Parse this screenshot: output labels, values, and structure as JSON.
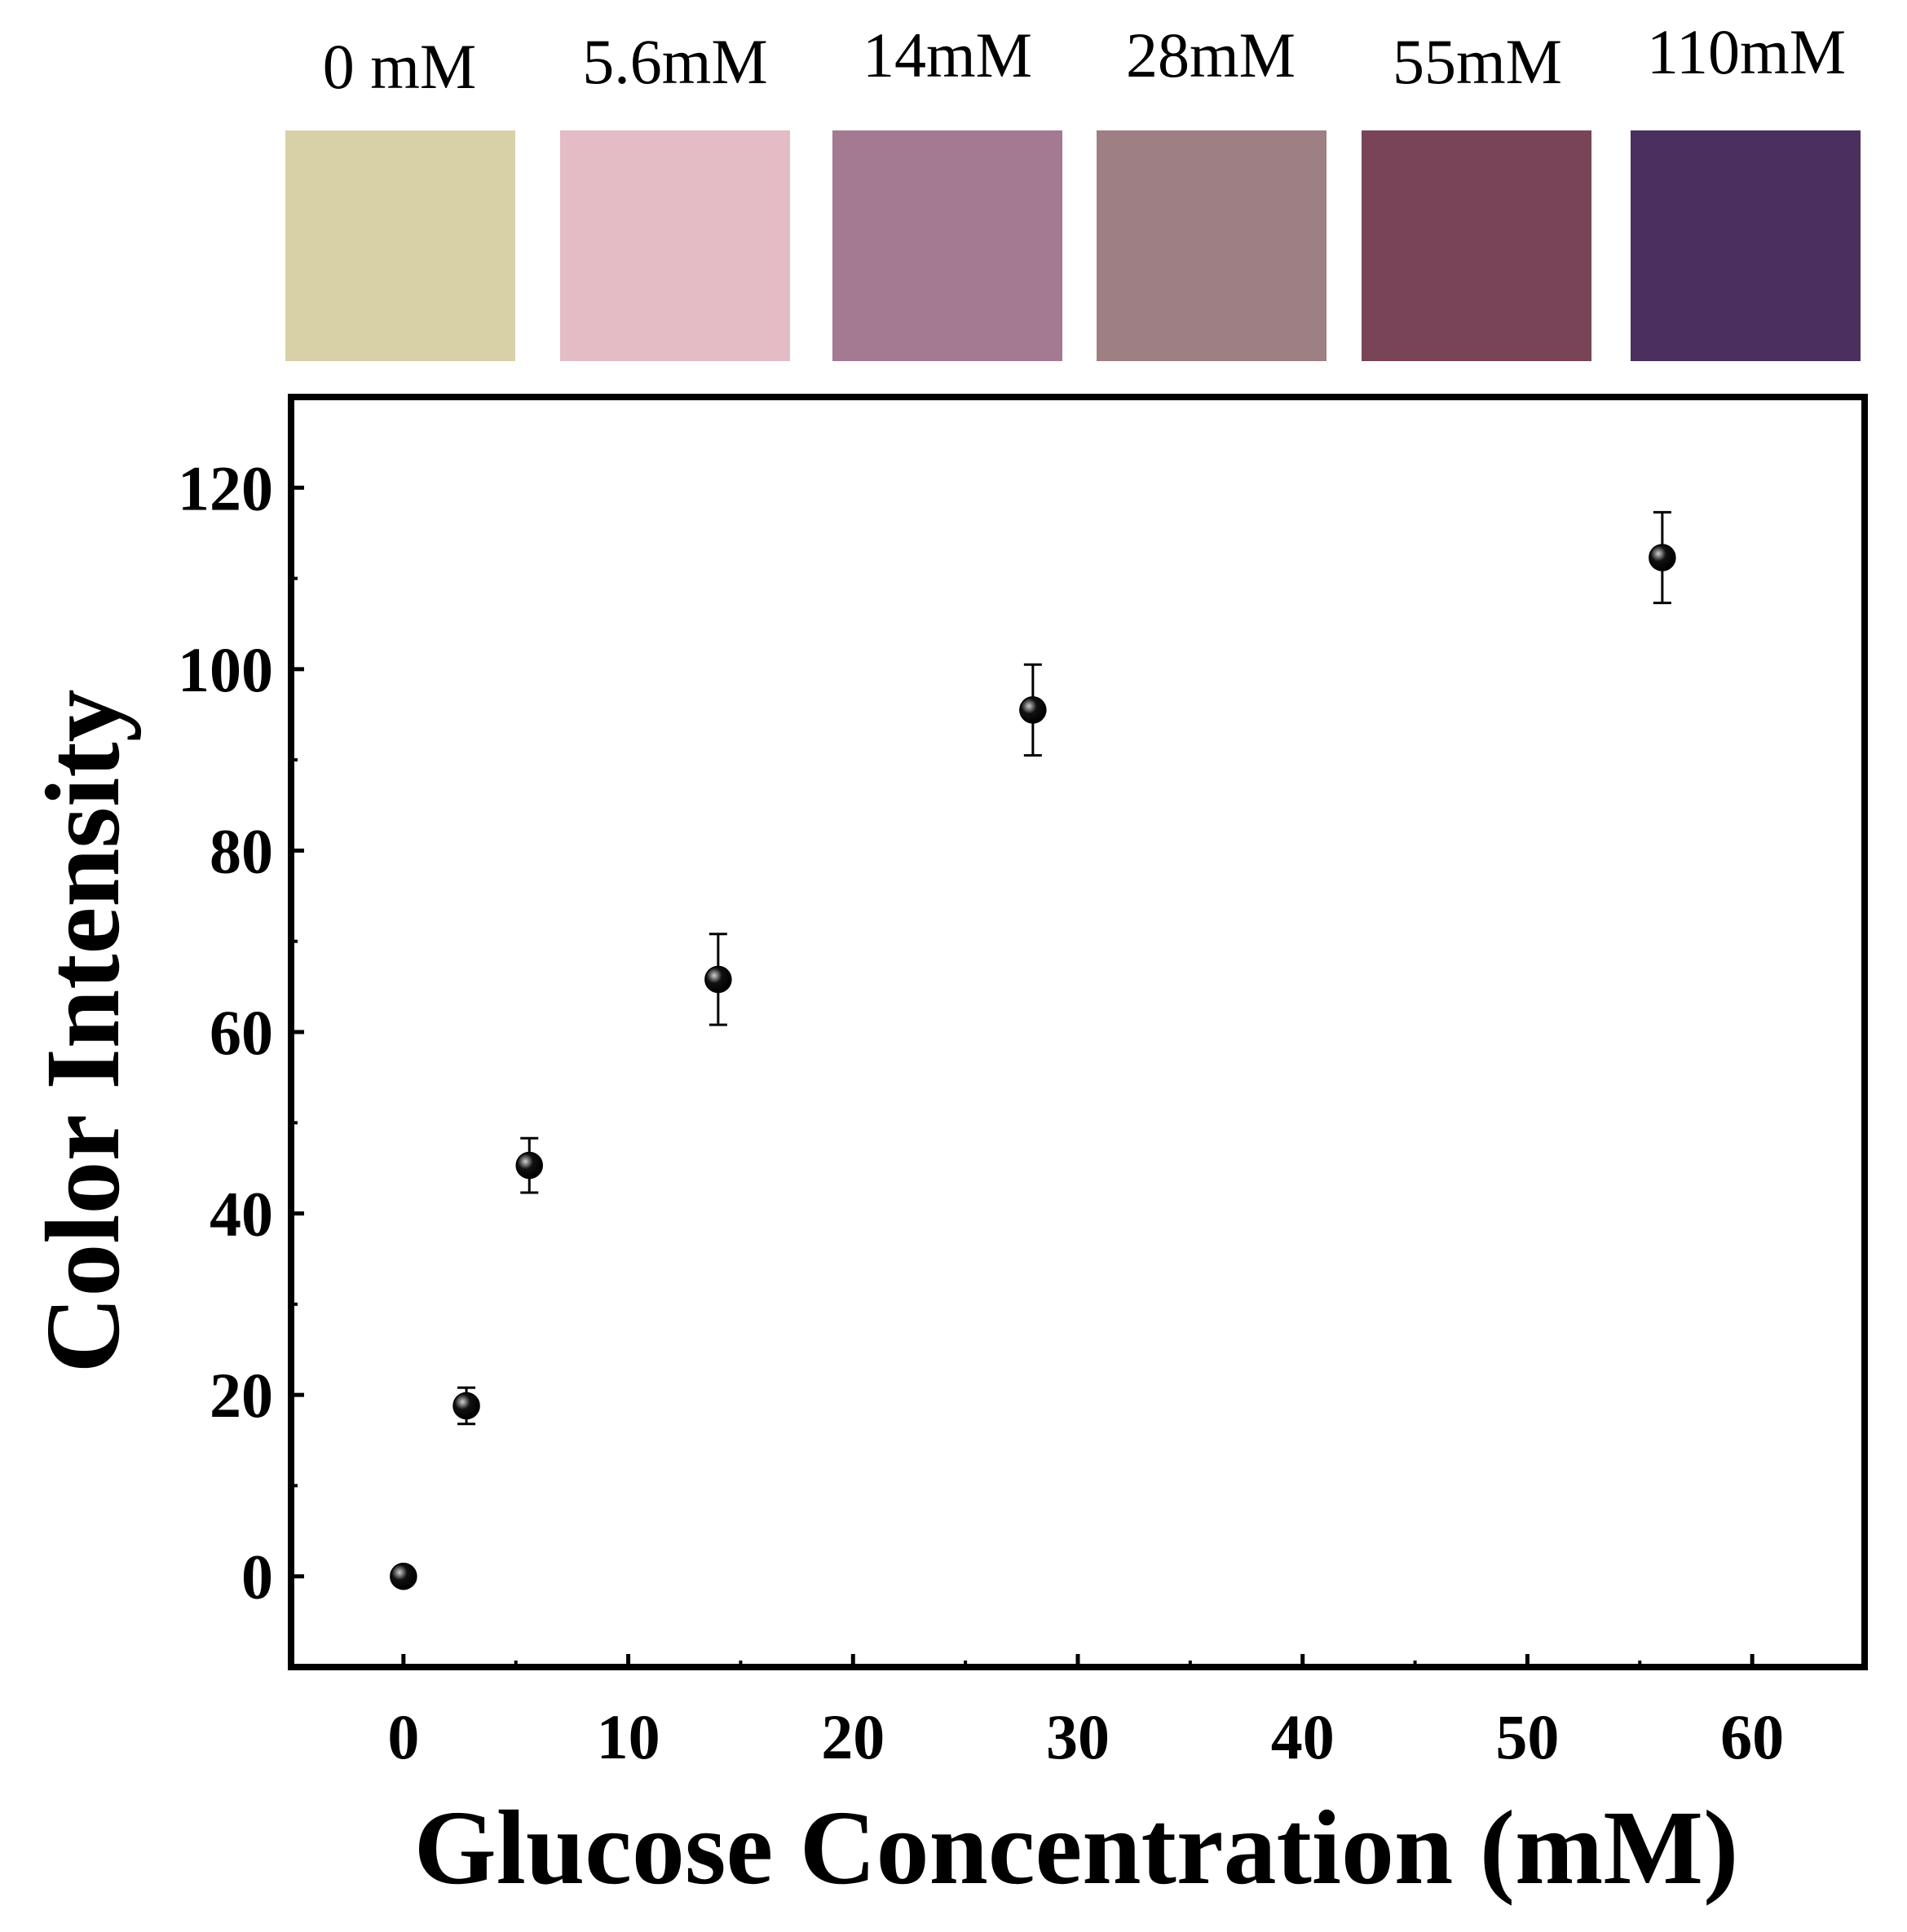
{
  "chart_data": {
    "type": "scatter",
    "title": "",
    "xlabel": "Glucose Concentration (mM)",
    "ylabel": "Color Intensity",
    "xlim": [
      -5,
      65
    ],
    "ylim": [
      -10,
      130
    ],
    "xticks": [
      0,
      10,
      20,
      30,
      40,
      50,
      60
    ],
    "yticks": [
      0,
      20,
      40,
      60,
      80,
      100,
      120
    ],
    "x_tick_labels": [
      "0",
      "10",
      "20",
      "30",
      "40",
      "50",
      "60"
    ],
    "y_tick_labels": [
      "0",
      "20",
      "40",
      "60",
      "80",
      "100",
      "120"
    ],
    "grid": false,
    "series": [
      {
        "name": "Color Intensity",
        "x": [
          0,
          2.8,
          5.6,
          14,
          28,
          56
        ],
        "y": [
          0,
          18.8,
          45.3,
          65.8,
          95.5,
          112.3
        ],
        "error": [
          0,
          2.0,
          3.0,
          5.0,
          5.0,
          5.0
        ]
      }
    ]
  },
  "swatches": [
    {
      "label": "0 mM",
      "color": "#d8d1a8"
    },
    {
      "label": "5.6mM",
      "color": "#e3bcc5"
    },
    {
      "label": "14mM",
      "color": "#a47a92"
    },
    {
      "label": "28mM",
      "color": "#9e7f83"
    },
    {
      "label": "55mM",
      "color": "#794457"
    },
    {
      "label": "110mM",
      "color": "#4b2f5f"
    }
  ],
  "colors": {
    "marker": "#111111",
    "axis": "#000000"
  }
}
